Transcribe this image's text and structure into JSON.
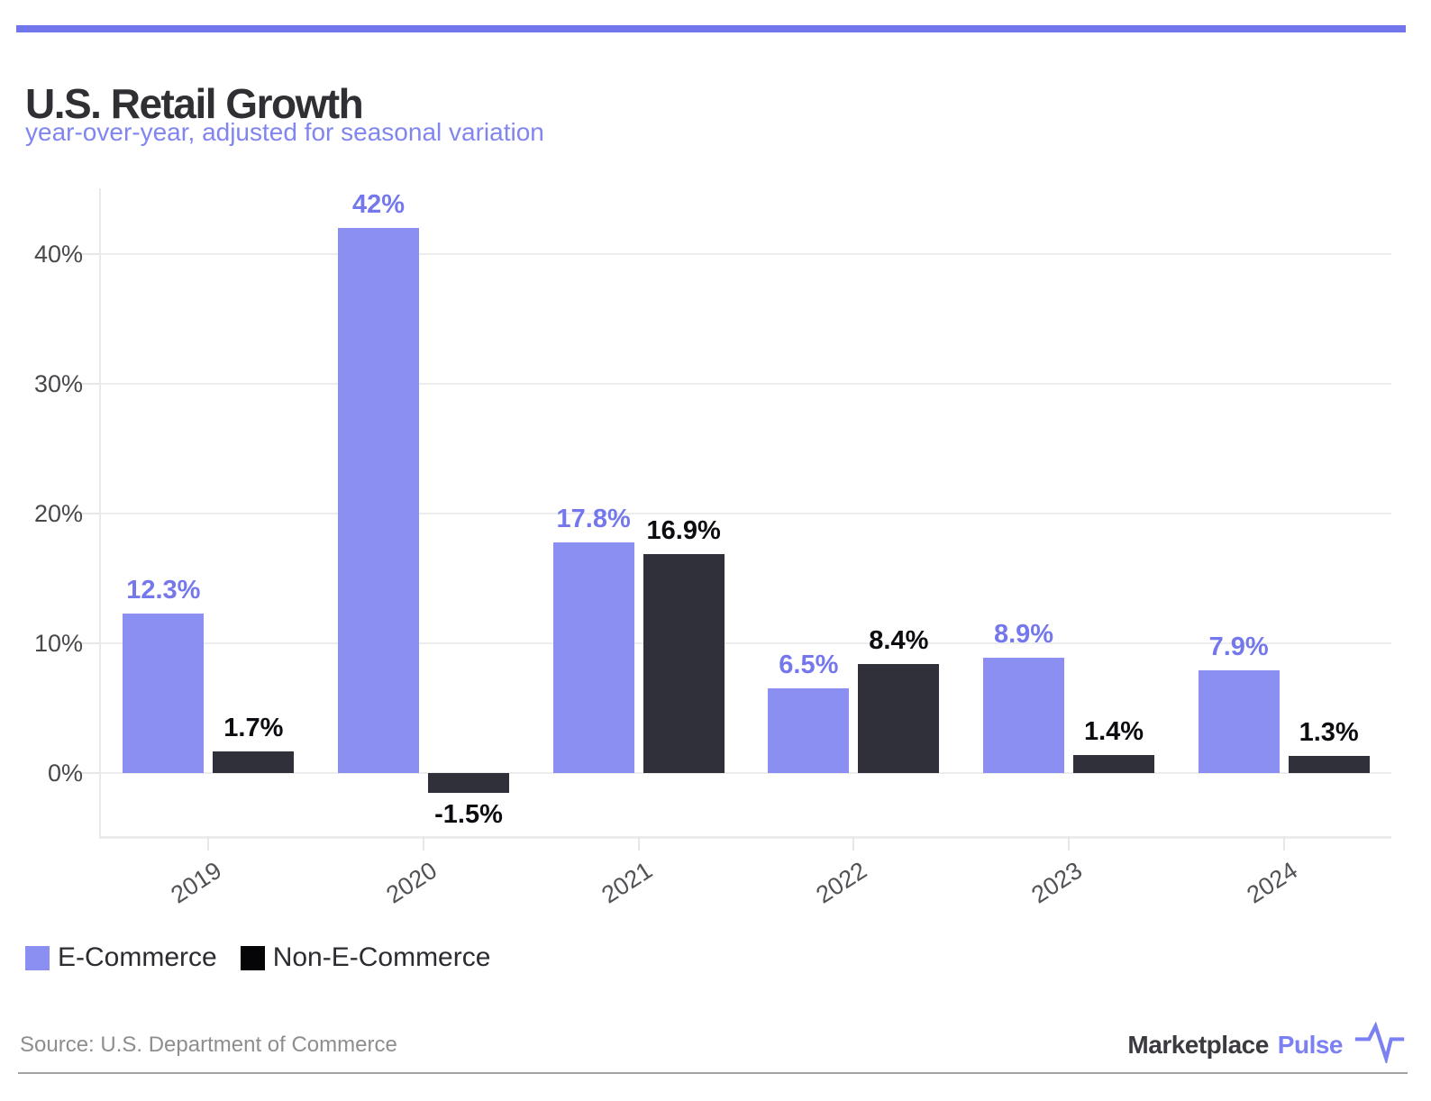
{
  "header": {
    "title": "U.S. Retail Growth",
    "subtitle": "year-over-year, adjusted for seasonal variation"
  },
  "colors": {
    "accent_bar": "#7176ed",
    "subtitle_text": "#8185f0",
    "ecommerce_bar": "#8b8ff2",
    "ecommerce_label": "#7478ec",
    "non_ecommerce_bar": "#2f303a",
    "non_ecommerce_label": "#0c0c11",
    "legend_swatch_ecommerce": "#8b8ff2",
    "legend_swatch_non_ecommerce": "#050508",
    "brand_purple": "#7b80f2"
  },
  "legend": {
    "items": [
      {
        "label": "E-Commerce",
        "swatch": "#8b8ff2"
      },
      {
        "label": "Non-E-Commerce",
        "swatch": "#050508"
      }
    ]
  },
  "footer": {
    "source": "Source: U.S. Department of Commerce",
    "brand": {
      "name": "Marketplace",
      "suffix": "Pulse"
    }
  },
  "chart_data": {
    "type": "bar",
    "title": "U.S. Retail Growth",
    "subtitle": "year-over-year, adjusted for seasonal variation",
    "categories": [
      "2019",
      "2020",
      "2021",
      "2022",
      "2023",
      "2024"
    ],
    "series": [
      {
        "name": "E-Commerce",
        "color": "#8b8ff2",
        "label_color": "#7478ec",
        "values": [
          12.3,
          42,
          17.8,
          6.5,
          8.9,
          7.9
        ],
        "labels": [
          "12.3%",
          "42%",
          "17.8%",
          "6.5%",
          "8.9%",
          "7.9%"
        ]
      },
      {
        "name": "Non-E-Commerce",
        "color": "#2f303a",
        "label_color": "#0c0c11",
        "values": [
          1.7,
          -1.5,
          16.9,
          8.4,
          1.4,
          1.3
        ],
        "labels": [
          "1.7%",
          "-1.5%",
          "16.9%",
          "8.4%",
          "1.4%",
          "1.3%"
        ]
      }
    ],
    "y_axis": {
      "ticks": [
        {
          "value": 0,
          "label": "0%"
        },
        {
          "value": 10,
          "label": "10%"
        },
        {
          "value": 20,
          "label": "20%"
        },
        {
          "value": 30,
          "label": "30%"
        },
        {
          "value": 40,
          "label": "40%"
        }
      ],
      "range": [
        -4.86,
        45.07
      ]
    },
    "grid": true,
    "legend_position": "bottom"
  }
}
